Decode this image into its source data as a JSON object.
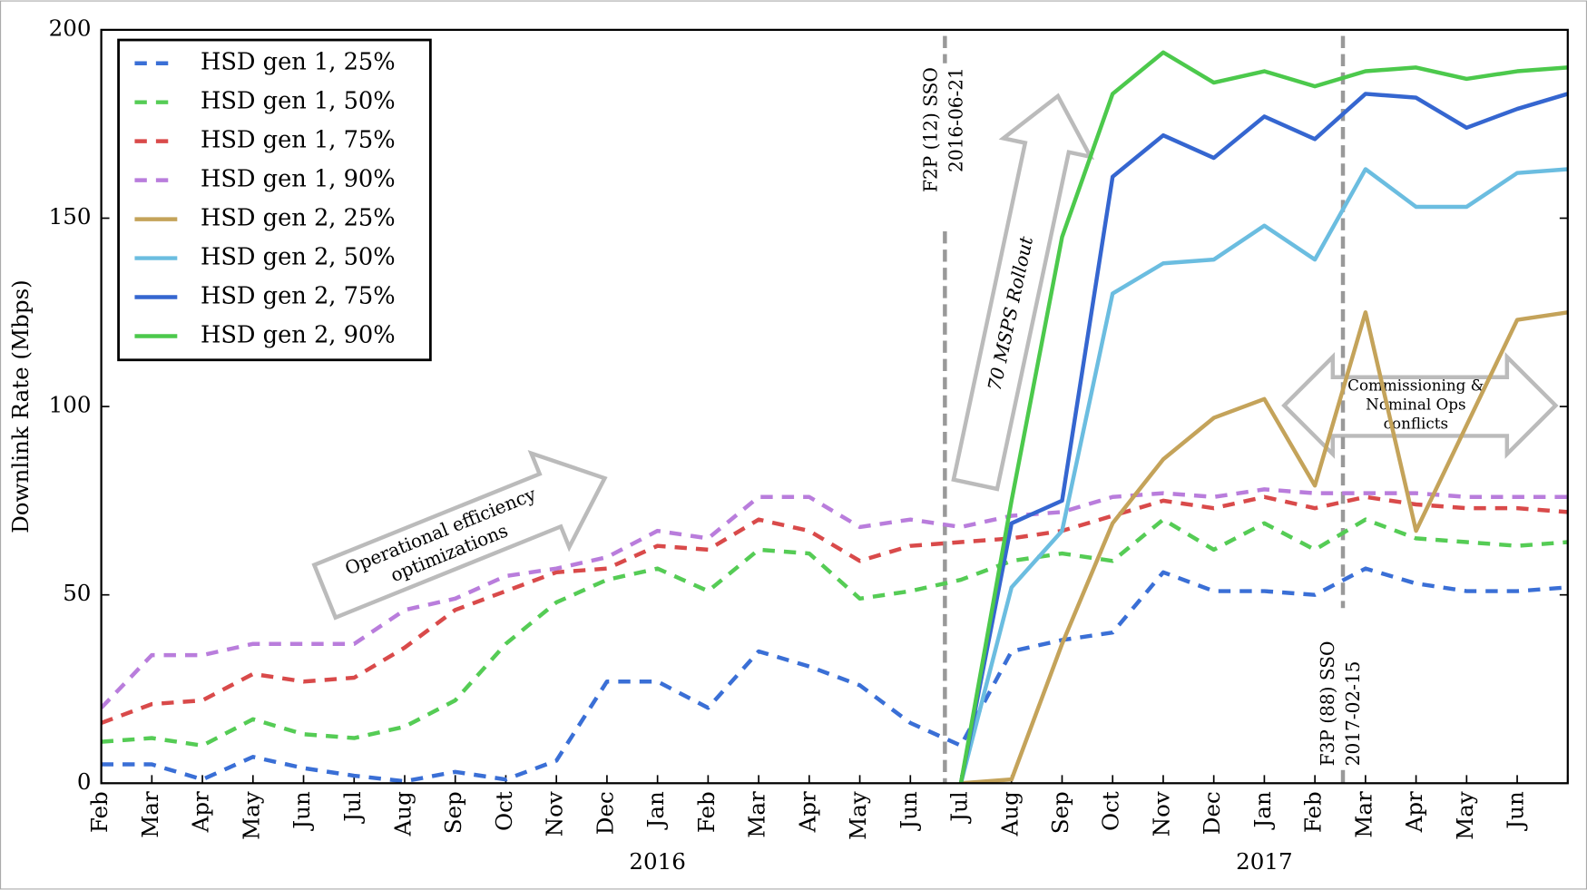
{
  "chart_data": {
    "type": "line",
    "y_label": "Downlink Rate (Mbps)",
    "categories": [
      "Feb",
      "Mar",
      "Apr",
      "May",
      "Jun",
      "Jul",
      "Aug",
      "Sep",
      "Oct",
      "Nov",
      "Dec",
      "Jan",
      "Feb",
      "Mar",
      "Apr",
      "May",
      "Jun",
      "Jul",
      "Aug",
      "Sep",
      "Oct",
      "Nov",
      "Dec",
      "Jan",
      "Feb",
      "Mar",
      "Apr",
      "May",
      "Jun",
      null
    ],
    "year_labels": [
      "2016",
      "2017"
    ],
    "ylim": [
      0,
      200
    ],
    "yticks": [
      0,
      50,
      100,
      150,
      200
    ],
    "legend": "upper left",
    "series": [
      {
        "name": "HSD gen 1, 25%",
        "color": "#3a6fd6",
        "style": "dashed",
        "values": [
          5,
          5,
          1,
          7,
          4,
          2,
          0.5,
          3,
          1,
          6,
          27,
          27,
          20,
          35,
          31,
          26,
          16,
          10,
          35,
          38,
          40,
          56,
          51,
          51,
          50,
          57,
          53,
          51,
          51,
          52
        ]
      },
      {
        "name": "HSD gen 1, 50%",
        "color": "#55cc55",
        "style": "dashed",
        "values": [
          11,
          12,
          10,
          17,
          13,
          12,
          15,
          22,
          37,
          48,
          54,
          57,
          51,
          62,
          61,
          49,
          51,
          54,
          59,
          61,
          59,
          70,
          62,
          69,
          62,
          70,
          65,
          64,
          63,
          64
        ]
      },
      {
        "name": "HSD gen 1, 75%",
        "color": "#d94a4a",
        "style": "dashed",
        "values": [
          16,
          21,
          22,
          29,
          27,
          28,
          36,
          46,
          51,
          56,
          57,
          63,
          62,
          70,
          67,
          59,
          63,
          64,
          65,
          67,
          71,
          75,
          73,
          76,
          73,
          76,
          74,
          73,
          73,
          72
        ]
      },
      {
        "name": "HSD gen 1, 90%",
        "color": "#b97ddc",
        "style": "dashed",
        "values": [
          20,
          34,
          34,
          37,
          37,
          37,
          46,
          49,
          55,
          57,
          60,
          67,
          65,
          76,
          76,
          68,
          70,
          68,
          71,
          72,
          76,
          77,
          76,
          78,
          77,
          77,
          77,
          76,
          76,
          76
        ]
      },
      {
        "name": "HSD gen 2, 25%",
        "color": "#c4a35a",
        "style": "solid",
        "values": [
          null,
          null,
          null,
          null,
          null,
          null,
          null,
          null,
          null,
          null,
          null,
          null,
          null,
          null,
          null,
          null,
          null,
          0,
          1,
          37,
          69,
          86,
          97,
          102,
          79,
          125,
          67,
          95,
          123,
          125
        ]
      },
      {
        "name": "HSD gen 2, 50%",
        "color": "#6bbde0",
        "style": "solid",
        "values": [
          null,
          null,
          null,
          null,
          null,
          null,
          null,
          null,
          null,
          null,
          null,
          null,
          null,
          null,
          null,
          null,
          null,
          0,
          52,
          67,
          130,
          138,
          139,
          148,
          139,
          163,
          153,
          153,
          162,
          163
        ]
      },
      {
        "name": "HSD gen 2, 75%",
        "color": "#3566d0",
        "style": "solid",
        "values": [
          null,
          null,
          null,
          null,
          null,
          null,
          null,
          null,
          null,
          null,
          null,
          null,
          null,
          null,
          null,
          null,
          null,
          0,
          69,
          75,
          161,
          172,
          166,
          177,
          171,
          183,
          182,
          174,
          179,
          183
        ]
      },
      {
        "name": "HSD gen 2, 90%",
        "color": "#4cc94c",
        "style": "solid",
        "values": [
          null,
          null,
          null,
          null,
          null,
          null,
          null,
          null,
          null,
          null,
          null,
          null,
          null,
          null,
          null,
          null,
          null,
          0,
          75,
          145,
          183,
          194,
          186,
          189,
          185,
          189,
          190,
          187,
          189,
          190
        ]
      }
    ],
    "annotations": {
      "f2p": [
        "F2P (12) SSO",
        "2016-06-21"
      ],
      "f3p": [
        "F3P (88) SSO",
        "2017-02-15"
      ],
      "opt": [
        "Operational efficiency",
        "optimizations"
      ],
      "rollout": "70 MSPS Rollout",
      "commissioning": [
        "Commissioning &",
        "Nominal Ops",
        "conflicts"
      ]
    }
  }
}
